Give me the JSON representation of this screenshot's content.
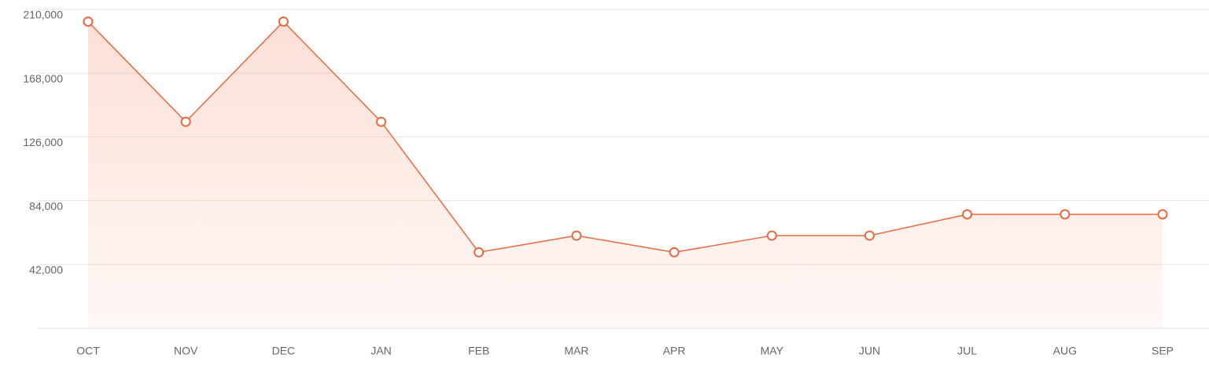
{
  "chart_data": {
    "type": "line",
    "categories": [
      "OCT",
      "NOV",
      "DEC",
      "JAN",
      "FEB",
      "MAR",
      "APR",
      "MAY",
      "JUN",
      "JUL",
      "AUG",
      "SEP"
    ],
    "values": [
      202000,
      136000,
      202000,
      136000,
      50000,
      61000,
      50000,
      61000,
      61000,
      75000,
      75000,
      75000
    ],
    "color": "#e8693f",
    "ylim": [
      0,
      210000
    ],
    "yticks": [
      {
        "value": 42000,
        "label": "42,000"
      },
      {
        "value": 84000,
        "label": "84,000"
      },
      {
        "value": 126000,
        "label": "126,000"
      },
      {
        "value": 168000,
        "label": "168,000"
      },
      {
        "value": 210000,
        "label": "210,000"
      }
    ],
    "grid": true
  }
}
